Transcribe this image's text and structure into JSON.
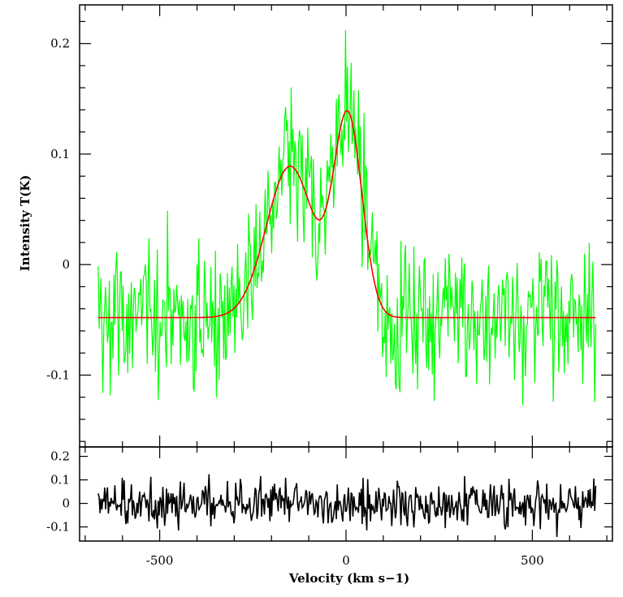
{
  "chart_data": [
    {
      "type": "line",
      "title": "",
      "xlabel": "Velocity (km s−1)",
      "ylabel": "Intensity T(K)",
      "xlim": [
        -715,
        715
      ],
      "ylim": [
        -0.165,
        0.235
      ],
      "x_ticks": [
        -500,
        0,
        500
      ],
      "x_tick_labels": [
        "-500",
        "0",
        "500"
      ],
      "y_ticks": [
        0.2,
        0.1,
        0,
        -0.1
      ],
      "y_tick_labels": [
        "0.2",
        "0.1",
        "0",
        "-0.1"
      ],
      "grid": false,
      "colors": {
        "data": "#00ff00",
        "fit": "#ff0000",
        "axes": "#000000"
      },
      "series": [
        {
          "kind": "observed spectrum",
          "x_range": [
            -665,
            670
          ],
          "approx_noise_sigma_K": 0.035,
          "y": [
            0.02,
            0.09,
            -0.04,
            0.03,
            -0.08,
            0.01,
            -0.12,
            -0.03,
            0.02,
            -0.09,
            -0.05,
            0.04,
            -0.11,
            -0.02,
            0.06,
            -0.08,
            -0.04,
            0.03,
            -0.1,
            -0.06,
            0.02,
            -0.09,
            -0.03,
            -0.12,
            0.01,
            -0.07,
            -0.02,
            -0.1,
            0.03,
            -0.06,
            -0.09,
            0.0,
            -0.04,
            -0.11,
            -0.06,
            0.02,
            -0.08,
            -0.03,
            -0.1,
            -0.05,
            0.01,
            -0.07,
            -0.12,
            -0.04,
            0.02,
            -0.06,
            -0.09,
            -0.03,
            0.01,
            -0.08,
            -0.05,
            -0.11,
            -0.02,
            0.03,
            -0.07,
            -0.04,
            -0.09,
            -0.01,
            -0.06,
            -0.03,
            0.01,
            -0.05,
            0.02,
            -0.02,
            0.04,
            0.0,
            0.05,
            0.03,
            0.07,
            0.02,
            0.09,
            0.05,
            0.11,
            0.07,
            0.12,
            0.08,
            0.1,
            0.06,
            0.12,
            0.08,
            0.09,
            0.05,
            0.07,
            0.03,
            0.04,
            0.01,
            0.02,
            -0.01,
            0.05,
            0.08,
            0.11,
            0.07,
            0.14,
            0.1,
            0.17,
            0.12,
            0.2,
            0.14,
            0.17,
            0.12,
            0.13,
            0.08,
            0.09,
            0.04,
            0.05,
            0.0,
            0.01,
            -0.04,
            -0.02,
            -0.06,
            -0.03,
            -0.08,
            -0.05,
            0.01,
            -0.07,
            -0.1,
            -0.03,
            -0.06,
            -0.11,
            -0.02,
            -0.08,
            -0.04,
            0.02,
            -0.07,
            -0.12,
            -0.05,
            -0.01,
            -0.09,
            -0.06,
            0.03,
            -0.08,
            -0.04,
            -0.1,
            -0.06,
            0.02,
            -0.09,
            -0.03,
            -0.07,
            -0.13,
            -0.05,
            0.01,
            -0.08,
            -0.04,
            -0.1,
            -0.06,
            0.04,
            -0.09,
            -0.05,
            -0.02,
            -0.11,
            -0.06,
            -0.03,
            0.03,
            -0.08,
            -0.05,
            -0.15,
            -0.07,
            -0.02,
            -0.09,
            -0.04,
            0.06,
            -0.08,
            -0.05,
            -0.1,
            -0.03,
            -0.07,
            -0.12,
            -0.04,
            0.02,
            -0.08,
            -0.05,
            -0.1,
            -0.06,
            -0.03,
            -0.09,
            0.01,
            -0.06,
            -0.11,
            -0.04,
            -0.08,
            -0.13,
            -0.05,
            0.0,
            -0.07,
            -0.04,
            -0.09,
            -0.06,
            -0.1,
            -0.03
          ]
        },
        {
          "kind": "two-component gaussian fit",
          "baseline_K": -0.048,
          "components": [
            {
              "center_kms": -150,
              "amplitude_K": 0.137,
              "fwhm_kms": 150
            },
            {
              "center_kms": 5,
              "amplitude_K": 0.18,
              "fwhm_kms": 90
            }
          ]
        },
        {
          "kind": "residuals",
          "panel": "lower",
          "ylim": [
            -0.16,
            0.24
          ],
          "y_ticks": [
            0.2,
            0.1,
            0,
            -0.1
          ],
          "y_tick_labels": [
            "0.2",
            "0.1",
            "0",
            "-0.1"
          ],
          "color": "#000000",
          "approx_noise_sigma_K": 0.045
        }
      ]
    }
  ]
}
